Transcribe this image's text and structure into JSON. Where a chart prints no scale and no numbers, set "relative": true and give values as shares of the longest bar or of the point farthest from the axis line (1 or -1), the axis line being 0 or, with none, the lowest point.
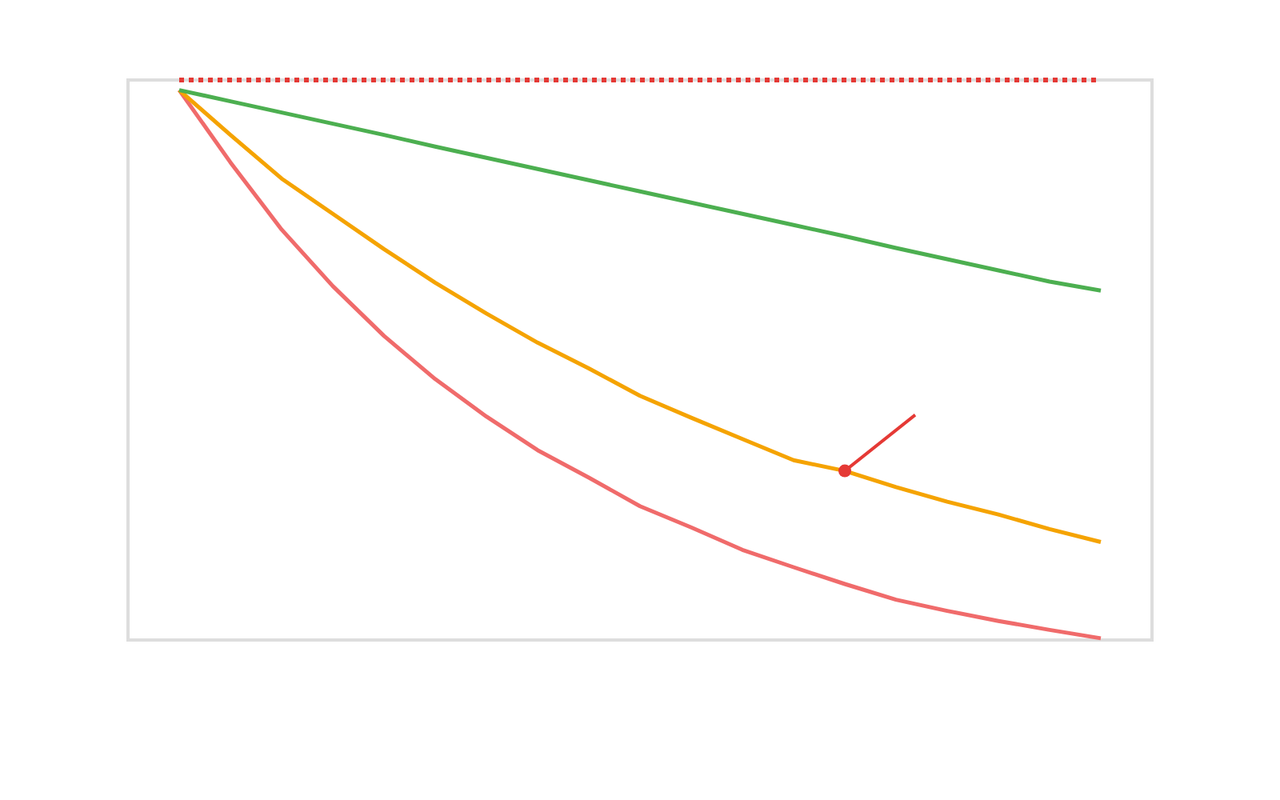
{
  "chart_data": {
    "type": "line",
    "relative": true,
    "categories": [
      null,
      null,
      null,
      null,
      null,
      null,
      null,
      null,
      null,
      null,
      null,
      null,
      null,
      null,
      null,
      null,
      null,
      null,
      null
    ],
    "series": [
      {
        "color": "#e53935",
        "line_style": "dotted",
        "values": [
          1,
          1,
          1,
          1,
          1,
          1,
          1,
          1,
          1,
          1,
          1,
          1,
          1,
          1,
          1,
          1,
          1,
          1,
          1
        ]
      },
      {
        "color": "#f06b6b",
        "values": [
          0.982,
          0.853,
          0.733,
          0.632,
          0.543,
          0.466,
          0.399,
          0.339,
          0.29,
          0.239,
          0.201,
          0.161,
          0.13,
          0.1,
          0.072,
          0.052,
          0.034,
          0.018,
          0.003
        ]
      },
      {
        "color": "#f5a300",
        "values": [
          0.982,
          0.902,
          0.824,
          0.761,
          0.698,
          0.638,
          0.583,
          0.531,
          0.485,
          0.436,
          0.397,
          0.359,
          0.321,
          0.302,
          0.273,
          0.247,
          0.224,
          0.198,
          0.175
        ]
      },
      {
        "color": "#4caf50",
        "values": [
          0.982,
          0.962,
          0.942,
          0.922,
          0.902,
          0.881,
          0.861,
          0.841,
          0.821,
          0.801,
          0.781,
          0.761,
          0.741,
          0.721,
          0.7,
          0.68,
          0.66,
          0.64,
          0.624
        ]
      }
    ]
  }
}
